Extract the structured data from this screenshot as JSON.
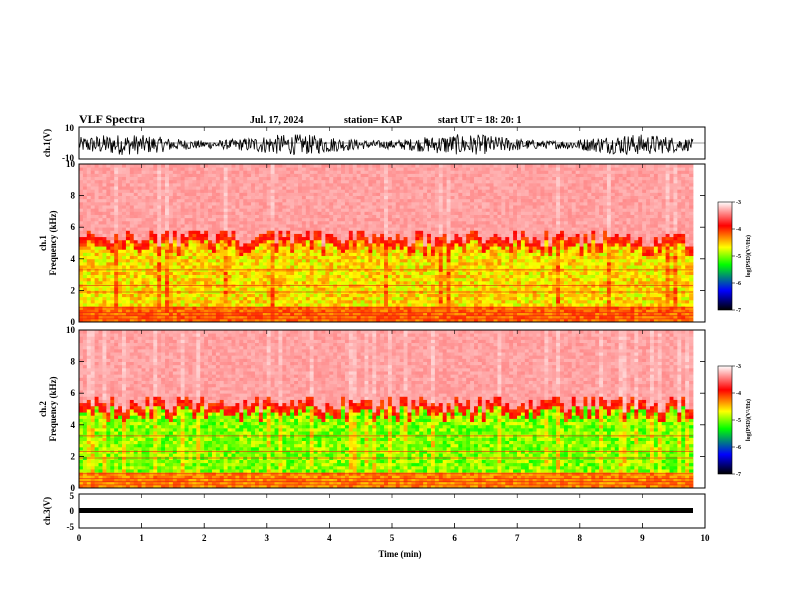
{
  "header": {
    "title": "VLF Spectra",
    "date": "Jul. 17, 2024",
    "station": "station= KAP",
    "start": "start UT = 18: 20: 1"
  },
  "colors": {
    "waveform": "#000000",
    "colormap": [
      "#000000",
      "#0000ff",
      "#00ff00",
      "#ffff00",
      "#ff0000",
      "#ffffff"
    ]
  },
  "chart_data": [
    {
      "type": "line",
      "ylabel": "ch.1(V)",
      "ylim": [
        -10,
        10
      ],
      "yticks": [
        "10",
        "-10"
      ],
      "xlim": [
        0,
        10
      ],
      "description_values": {
        "amplitude_range": [
          -10,
          10
        ]
      }
    },
    {
      "type": "heatmap",
      "ylabel_line1": "ch.1",
      "ylabel_line2": "Frequency (kHz)",
      "ylim": [
        0,
        10
      ],
      "yticks": [
        "0",
        "2",
        "4",
        "6",
        "8",
        "10"
      ],
      "xlim": [
        0,
        10
      ],
      "colorbar": {
        "label": "log(PSD)(V²/Hz)",
        "range": [
          -7,
          -3
        ],
        "ticks": [
          "-3",
          "-4",
          "-5",
          "-6",
          "-7"
        ]
      },
      "bands": [
        {
          "f_range": [
            0,
            1
          ],
          "level": -4.2
        },
        {
          "f_range": [
            1,
            4
          ],
          "level": -4.6
        },
        {
          "f_range": [
            4,
            5
          ],
          "level": -4.0
        },
        {
          "f_range": [
            5,
            10
          ],
          "level": -3.3
        }
      ]
    },
    {
      "type": "heatmap",
      "ylabel_line1": "ch.2",
      "ylabel_line2": "Frequency (kHz)",
      "ylim": [
        0,
        10
      ],
      "yticks": [
        "0",
        "2",
        "4",
        "6",
        "8",
        "10"
      ],
      "xlim": [
        0,
        10
      ],
      "colorbar": {
        "label": "log(PSD)(V²/Hz)",
        "range": [
          -7,
          -3
        ],
        "ticks": [
          "-3",
          "-4",
          "-5",
          "-6",
          "-7"
        ]
      },
      "bands": [
        {
          "f_range": [
            0,
            1
          ],
          "level": -4.3
        },
        {
          "f_range": [
            1,
            4
          ],
          "level": -5.0
        },
        {
          "f_range": [
            4,
            5
          ],
          "level": -4.0
        },
        {
          "f_range": [
            5,
            10
          ],
          "level": -3.3
        }
      ]
    },
    {
      "type": "line",
      "ylabel": "ch.3(V)",
      "ylim": [
        -5,
        5
      ],
      "yticks": [
        "5",
        "0",
        "-5"
      ],
      "xlim": [
        0,
        10
      ],
      "xlabel": "Time (min)",
      "xticks": [
        "0",
        "1",
        "2",
        "3",
        "4",
        "5",
        "6",
        "7",
        "8",
        "9",
        "10"
      ]
    }
  ]
}
